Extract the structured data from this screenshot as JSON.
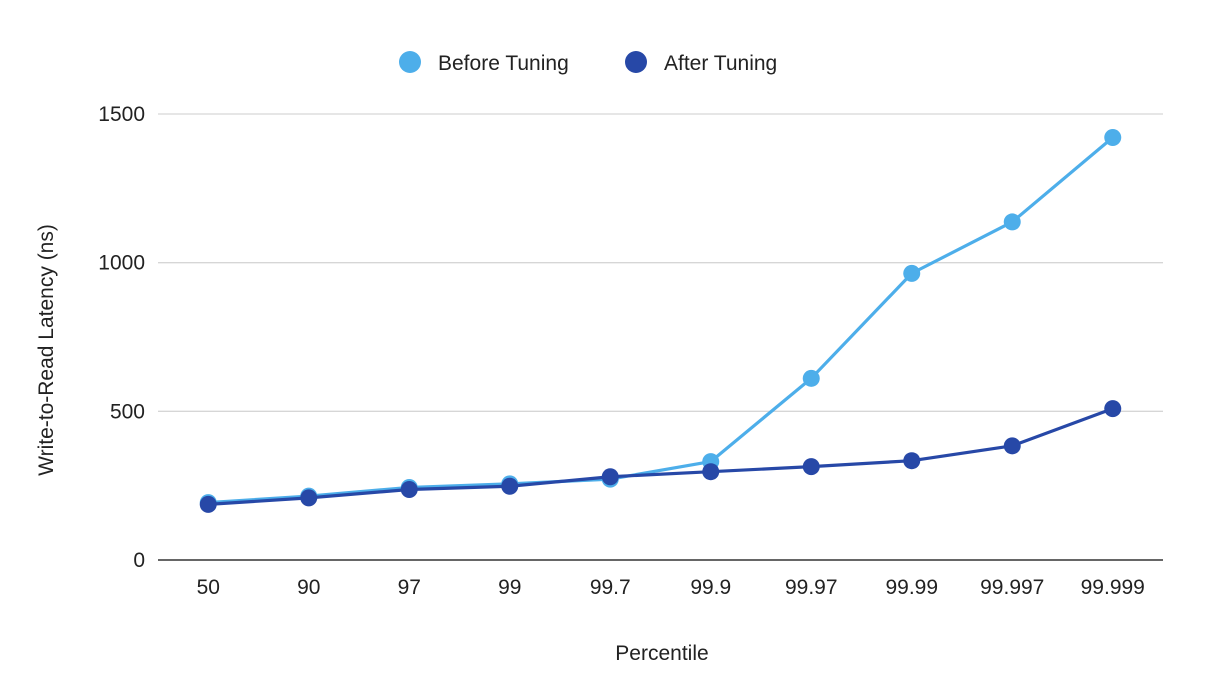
{
  "chart_data": {
    "type": "line",
    "title": "",
    "xlabel": "Percentile",
    "ylabel": "Write-to-Read Latency (ns)",
    "categories": [
      "50",
      "90",
      "97",
      "99",
      "99.7",
      "99.9",
      "99.97",
      "99.99",
      "99.997",
      "99.999"
    ],
    "ylim": [
      0,
      1500
    ],
    "yticks": [
      "0",
      "500",
      "1000",
      "1500"
    ],
    "grid": true,
    "legend_position": "top-center",
    "series": [
      {
        "name": "Before Tuning",
        "color": "#4daeea",
        "values": [
          193,
          215,
          244,
          256,
          272,
          331,
          611,
          964,
          1137,
          1421
        ]
      },
      {
        "name": "After Tuning",
        "color": "#2748a7",
        "values": [
          187,
          209,
          237,
          248,
          280,
          297,
          314,
          334,
          384,
          509
        ]
      }
    ]
  }
}
